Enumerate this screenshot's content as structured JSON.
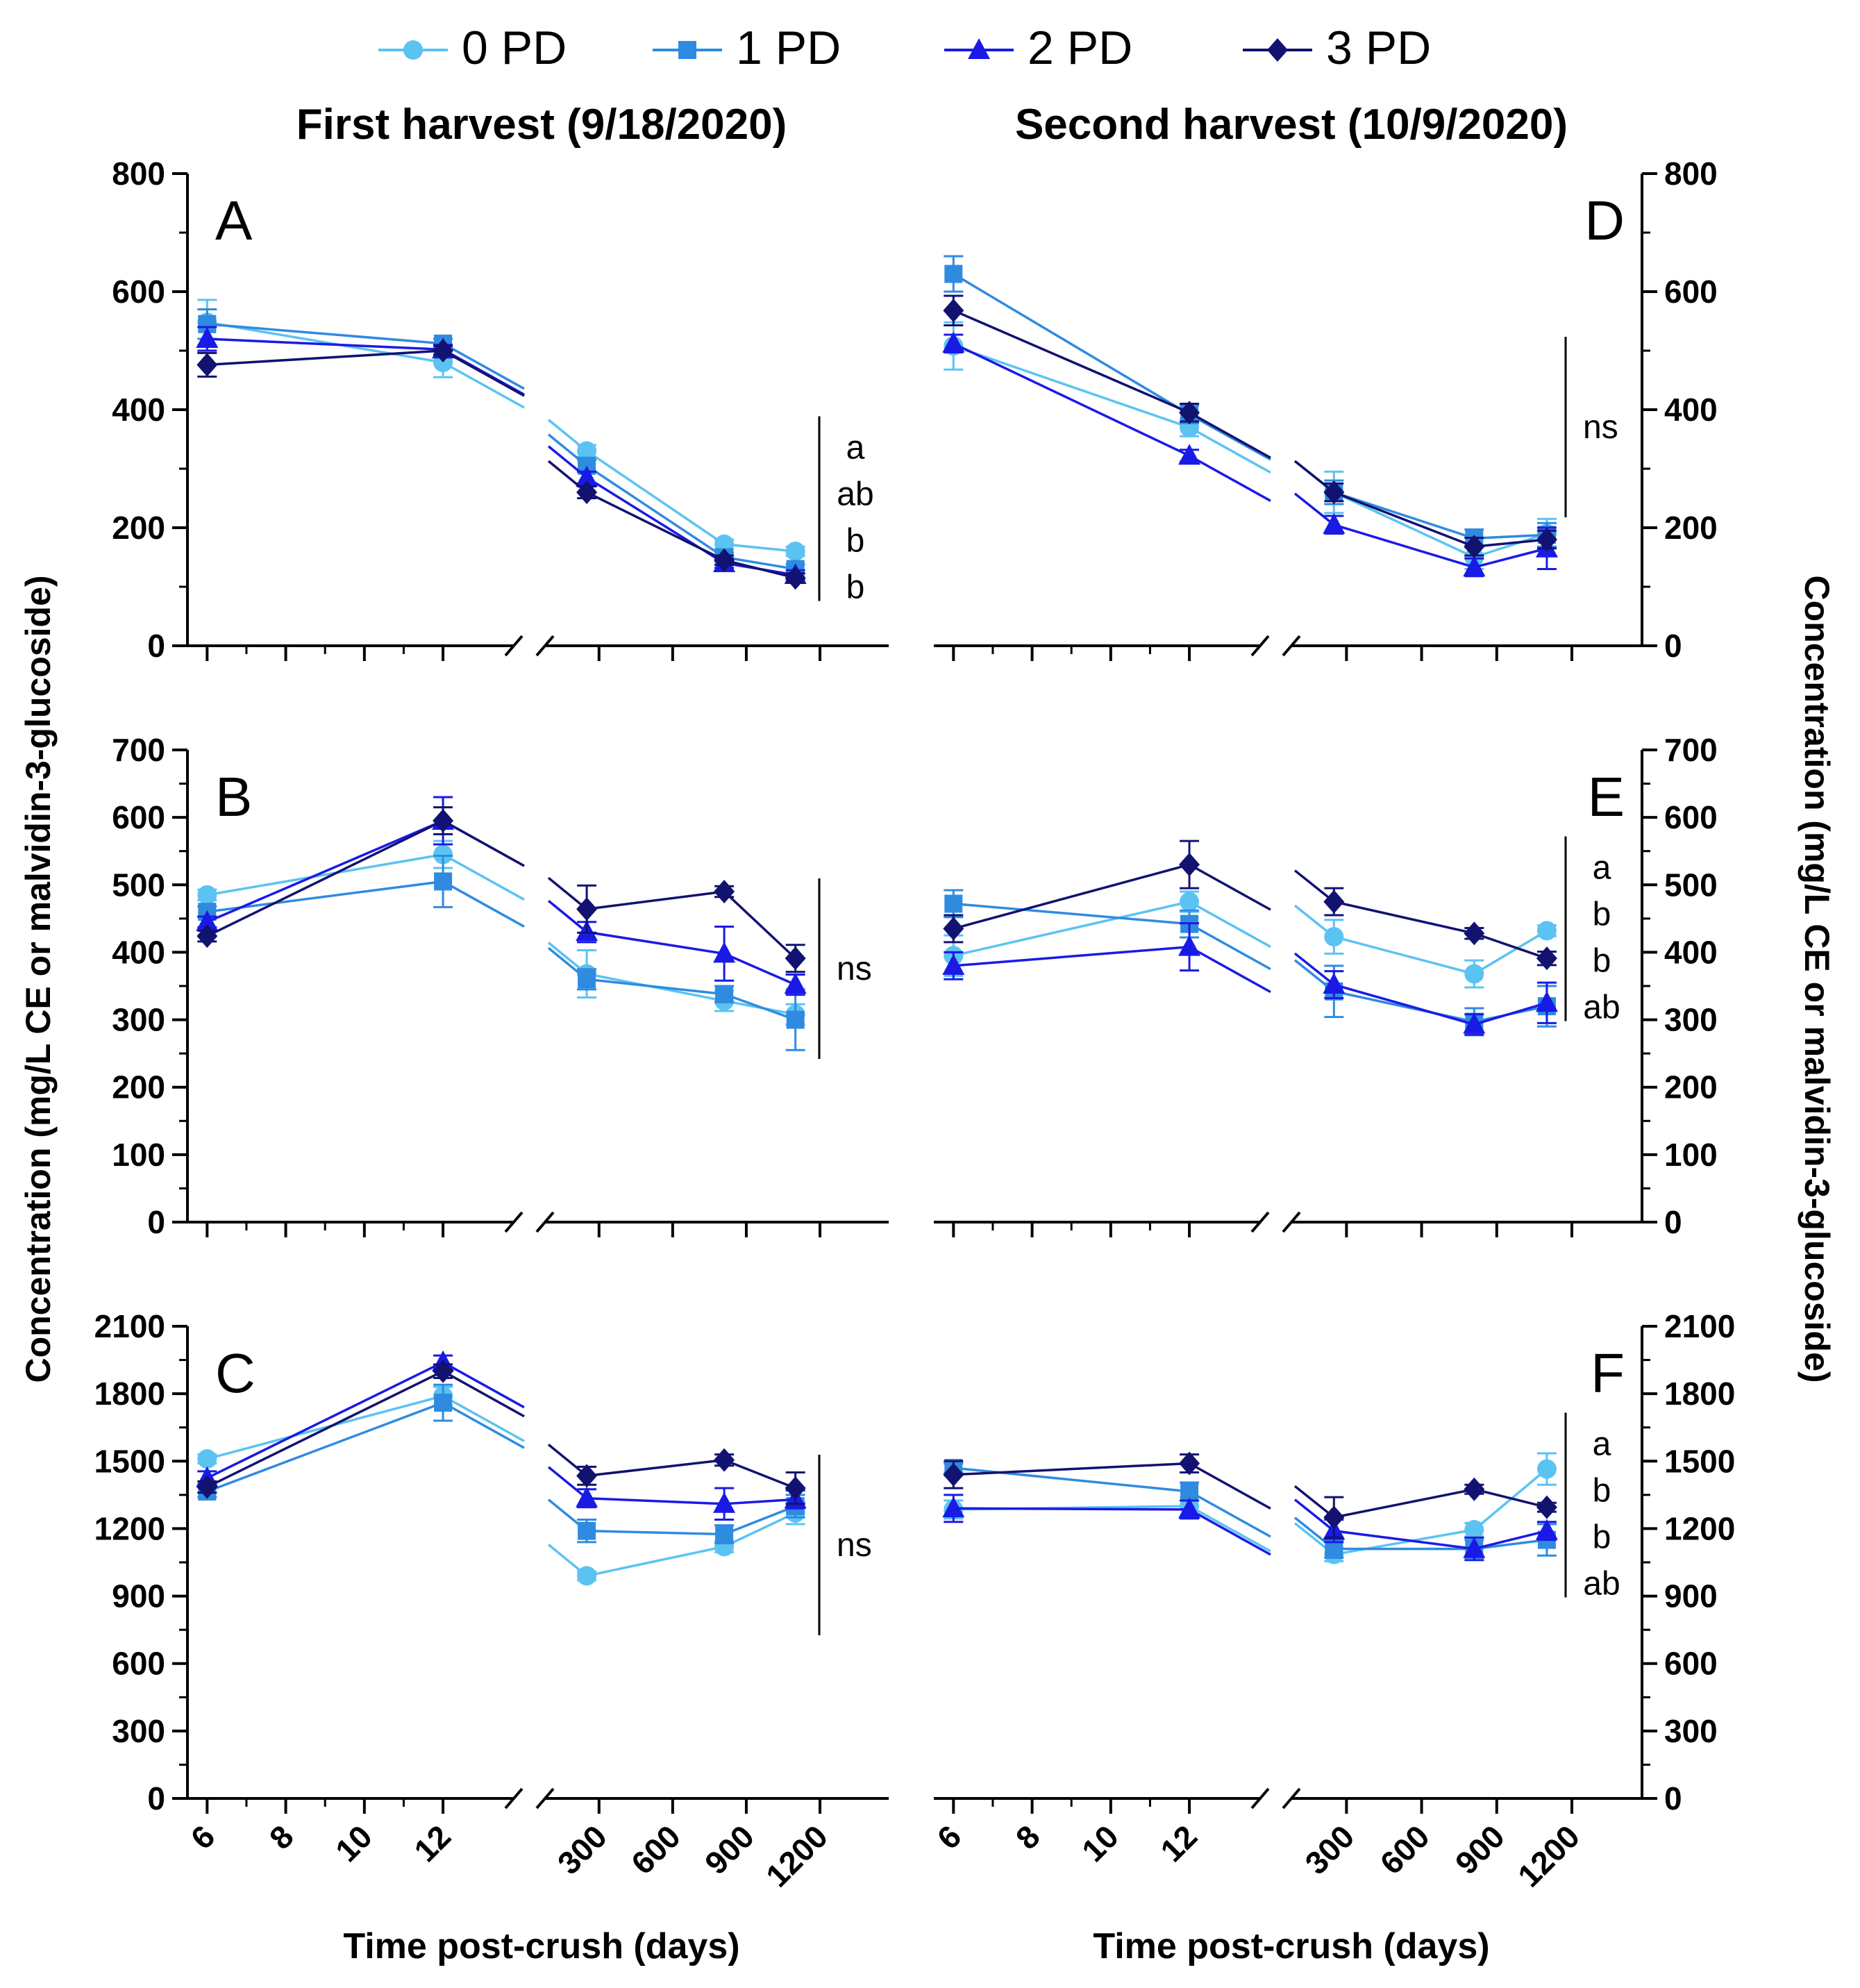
{
  "figure": {
    "col_titles": [
      "First harvest  (9/18/2020)",
      "Second harvest (10/9/2020)"
    ],
    "ylabel_left": "Concentration (mg/L CE or malvidin-3-glucoside)",
    "ylabel_right": "Concentration (mg/L CE or malvidin-3-glucoside)",
    "xlabel": "Time post-crush (days)",
    "legend_position": "top"
  },
  "legend": [
    {
      "name": "0 PD",
      "color": "#5bc3f2",
      "marker": "circle"
    },
    {
      "name": "1 PD",
      "color": "#2f8be0",
      "marker": "square"
    },
    {
      "name": "2 PD",
      "color": "#1a1ae6",
      "marker": "triangle"
    },
    {
      "name": "3 PD",
      "color": "#121270",
      "marker": "diamond"
    }
  ],
  "chart_data": [
    {
      "panel": "A",
      "type": "line",
      "column": "left",
      "ylim": [
        0,
        800
      ],
      "yticks": [
        0,
        200,
        400,
        600,
        800
      ],
      "x_segment1": [
        6,
        12
      ],
      "x_segment2": [
        250,
        810,
        1100
      ],
      "xticks_segment1": [
        6,
        8,
        10,
        12
      ],
      "xticks_segment2": [
        300,
        600,
        900,
        1200
      ],
      "series": [
        {
          "name": "0 PD",
          "seg1": [
            548,
            480
          ],
          "seg2": [
            330,
            172,
            160
          ],
          "err1": [
            38,
            25
          ],
          "err2": [
            10,
            8,
            8
          ]
        },
        {
          "name": "1 PD",
          "seg1": [
            545,
            512
          ],
          "seg2": [
            305,
            150,
            130
          ],
          "err1": [
            25,
            8
          ],
          "err2": [
            10,
            8,
            8
          ]
        },
        {
          "name": "2 PD",
          "seg1": [
            520,
            502
          ],
          "seg2": [
            285,
            140,
            120
          ],
          "err1": [
            20,
            8
          ],
          "err2": [
            10,
            8,
            8
          ]
        },
        {
          "name": "3 PD",
          "seg1": [
            476,
            500
          ],
          "seg2": [
            260,
            145,
            115
          ],
          "err1": [
            20,
            8
          ],
          "err2": [
            10,
            8,
            8
          ]
        }
      ],
      "significance": [
        "a",
        "ab",
        "b",
        "b"
      ]
    },
    {
      "panel": "B",
      "type": "line",
      "column": "left",
      "ylim": [
        0,
        700
      ],
      "yticks": [
        0,
        100,
        200,
        300,
        400,
        500,
        600,
        700
      ],
      "x_segment1": [
        6,
        12
      ],
      "x_segment2": [
        250,
        810,
        1100
      ],
      "xticks_segment1": [
        6,
        8,
        10,
        12
      ],
      "xticks_segment2": [
        300,
        600,
        900,
        1200
      ],
      "series": [
        {
          "name": "0 PD",
          "seg1": [
            485,
            545
          ],
          "seg2": [
            368,
            328,
            308
          ],
          "err1": [
            8,
            20
          ],
          "err2": [
            35,
            15,
            15
          ]
        },
        {
          "name": "1 PD",
          "seg1": [
            460,
            505
          ],
          "seg2": [
            360,
            338,
            300
          ],
          "err1": [
            8,
            38
          ],
          "err2": [
            15,
            12,
            45
          ]
        },
        {
          "name": "2 PD",
          "seg1": [
            445,
            595
          ],
          "seg2": [
            430,
            398,
            352
          ],
          "err1": [
            8,
            35
          ],
          "err2": [
            15,
            40,
            15
          ]
        },
        {
          "name": "3 PD",
          "seg1": [
            424,
            595
          ],
          "seg2": [
            464,
            490,
            391
          ],
          "err1": [
            8,
            20
          ],
          "err2": [
            35,
            8,
            20
          ]
        }
      ],
      "significance": [
        "ns"
      ]
    },
    {
      "panel": "C",
      "type": "line",
      "column": "left",
      "ylim": [
        0,
        2100
      ],
      "yticks": [
        0,
        300,
        600,
        900,
        1200,
        1500,
        1800,
        2100
      ],
      "x_segment1": [
        6,
        12
      ],
      "x_segment2": [
        250,
        810,
        1100
      ],
      "xticks_segment1": [
        6,
        8,
        10,
        12
      ],
      "xticks_segment2": [
        300,
        600,
        900,
        1200
      ],
      "series": [
        {
          "name": "0 PD",
          "seg1": [
            1510,
            1790
          ],
          "seg2": [
            990,
            1120,
            1270
          ],
          "err1": [
            20,
            40
          ],
          "err2": [
            20,
            25,
            50
          ]
        },
        {
          "name": "1 PD",
          "seg1": [
            1365,
            1760
          ],
          "seg2": [
            1190,
            1175,
            1300
          ],
          "err1": [
            25,
            80
          ],
          "err2": [
            50,
            40,
            50
          ]
        },
        {
          "name": "2 PD",
          "seg1": [
            1425,
            1940
          ],
          "seg2": [
            1335,
            1310,
            1330
          ],
          "err1": [
            30,
            30
          ],
          "err2": [
            40,
            70,
            40
          ]
        },
        {
          "name": "3 PD",
          "seg1": [
            1385,
            1900
          ],
          "seg2": [
            1435,
            1505,
            1380
          ],
          "err1": [
            25,
            30
          ],
          "err2": [
            40,
            25,
            70
          ]
        }
      ],
      "significance": [
        "ns"
      ]
    },
    {
      "panel": "D",
      "type": "line",
      "column": "right",
      "ylim": [
        0,
        800
      ],
      "yticks": [
        0,
        200,
        400,
        600,
        800
      ],
      "x_segment1": [
        6,
        12
      ],
      "x_segment2": [
        250,
        810,
        1100
      ],
      "xticks_segment1": [
        6,
        8,
        10,
        12
      ],
      "xticks_segment2": [
        300,
        600,
        900,
        1200
      ],
      "series": [
        {
          "name": "0 PD",
          "seg1": [
            508,
            370
          ],
          "seg2": [
            260,
            150,
            190
          ],
          "err1": [
            40,
            15
          ],
          "err2": [
            35,
            20,
            25
          ]
        },
        {
          "name": "1 PD",
          "seg1": [
            630,
            392
          ],
          "seg2": [
            260,
            182,
            188
          ],
          "err1": [
            30,
            15
          ],
          "err2": [
            20,
            15,
            20
          ]
        },
        {
          "name": "2 PD",
          "seg1": [
            512,
            322
          ],
          "seg2": [
            205,
            133,
            165
          ],
          "err1": [
            15,
            10
          ],
          "err2": [
            15,
            15,
            35
          ]
        },
        {
          "name": "3 PD",
          "seg1": [
            568,
            395
          ],
          "seg2": [
            260,
            168,
            180
          ],
          "err1": [
            25,
            15
          ],
          "err2": [
            15,
            15,
            15
          ]
        }
      ],
      "significance": [
        "ns"
      ]
    },
    {
      "panel": "E",
      "type": "line",
      "column": "right",
      "ylim": [
        0,
        700
      ],
      "yticks": [
        0,
        100,
        200,
        300,
        400,
        500,
        600,
        700
      ],
      "x_segment1": [
        6,
        12
      ],
      "x_segment2": [
        250,
        810,
        1100
      ],
      "xticks_segment1": [
        6,
        8,
        10,
        12
      ],
      "xticks_segment2": [
        300,
        600,
        900,
        1200
      ],
      "series": [
        {
          "name": "0 PD",
          "seg1": [
            395,
            475
          ],
          "seg2": [
            423,
            368,
            432
          ],
          "err1": [
            30,
            15
          ],
          "err2": [
            25,
            20,
            8
          ]
        },
        {
          "name": "1 PD",
          "seg1": [
            472,
            442
          ],
          "seg2": [
            342,
            297,
            320
          ],
          "err1": [
            20,
            20
          ],
          "err2": [
            38,
            20,
            30
          ]
        },
        {
          "name": "2 PD",
          "seg1": [
            380,
            408
          ],
          "seg2": [
            352,
            293,
            325
          ],
          "err1": [
            20,
            35
          ],
          "err2": [
            20,
            15,
            30
          ]
        },
        {
          "name": "3 PD",
          "seg1": [
            435,
            530
          ],
          "seg2": [
            475,
            428,
            391
          ],
          "err1": [
            20,
            35
          ],
          "err2": [
            20,
            8,
            10
          ]
        }
      ],
      "significance": [
        "a",
        "b",
        "b",
        "ab"
      ]
    },
    {
      "panel": "F",
      "type": "line",
      "column": "right",
      "ylim": [
        0,
        2100
      ],
      "yticks": [
        0,
        300,
        600,
        900,
        1200,
        1500,
        1800,
        2100
      ],
      "x_segment1": [
        6,
        12
      ],
      "x_segment2": [
        250,
        810,
        1100
      ],
      "xticks_segment1": [
        6,
        8,
        10,
        12
      ],
      "xticks_segment2": [
        300,
        600,
        900,
        1200
      ],
      "series": [
        {
          "name": "0 PD",
          "seg1": [
            1285,
            1300
          ],
          "seg2": [
            1085,
            1195,
            1465
          ],
          "err1": [
            40,
            40
          ],
          "err2": [
            30,
            30,
            70
          ]
        },
        {
          "name": "1 PD",
          "seg1": [
            1470,
            1365
          ],
          "seg2": [
            1110,
            1110,
            1150
          ],
          "err1": [
            20,
            40
          ],
          "err2": [
            40,
            40,
            70
          ]
        },
        {
          "name": "2 PD",
          "seg1": [
            1290,
            1285
          ],
          "seg2": [
            1190,
            1110,
            1190
          ],
          "err1": [
            60,
            40
          ],
          "err2": [
            50,
            50,
            40
          ]
        },
        {
          "name": "3 PD",
          "seg1": [
            1440,
            1490
          ],
          "seg2": [
            1250,
            1375,
            1295
          ],
          "err1": [
            60,
            40
          ],
          "err2": [
            90,
            20,
            20
          ]
        }
      ],
      "significance": [
        "a",
        "b",
        "b",
        "ab"
      ]
    }
  ]
}
